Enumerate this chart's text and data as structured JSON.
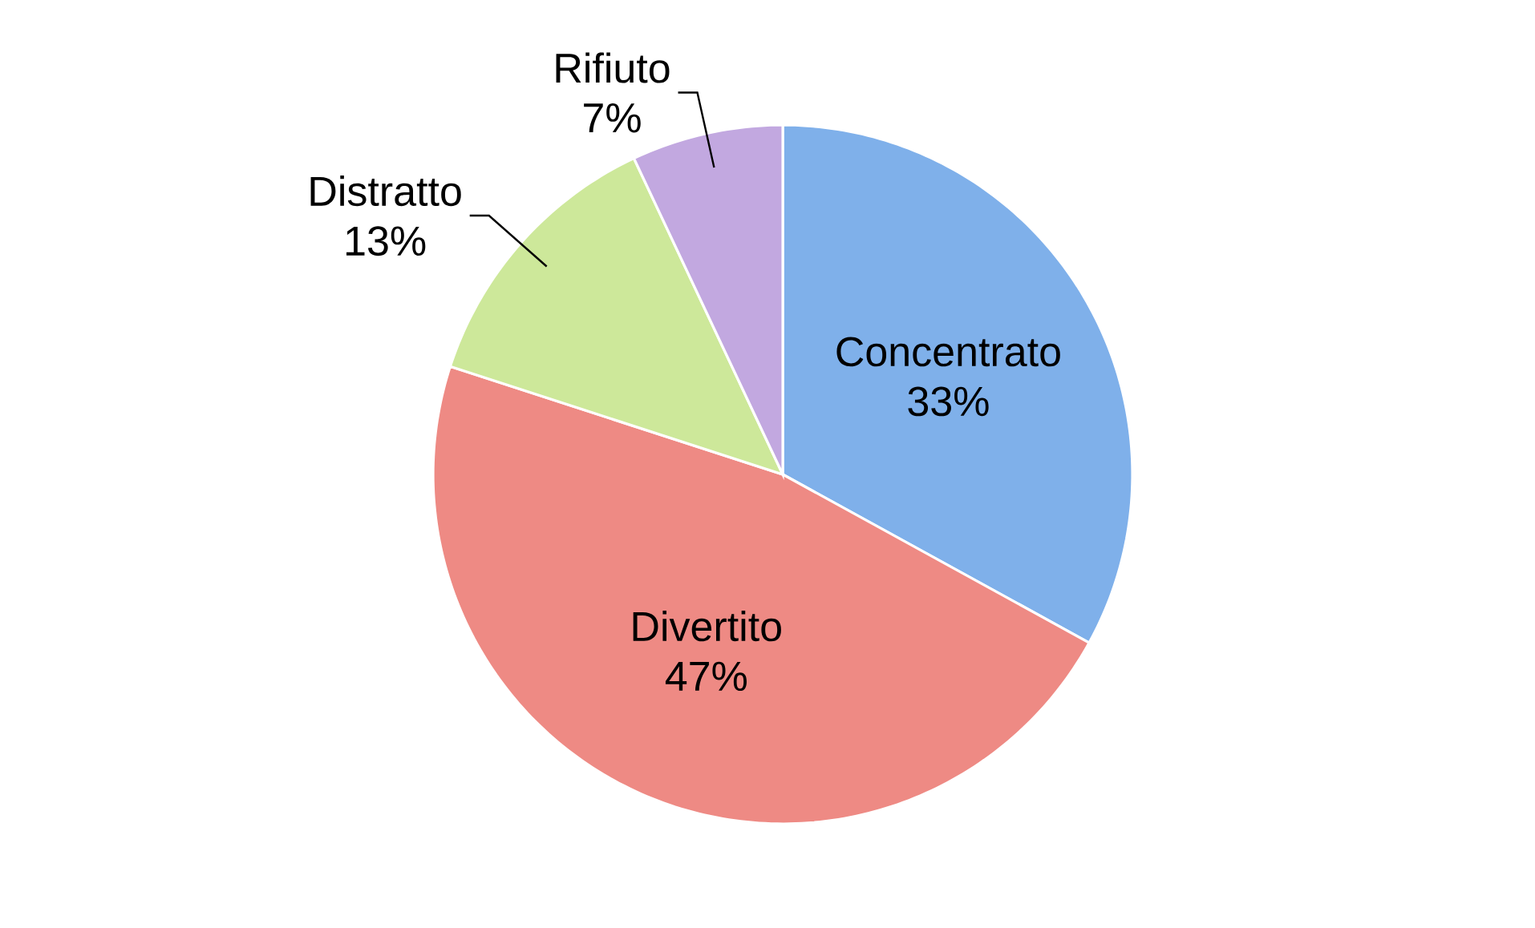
{
  "chart_data": {
    "type": "pie",
    "categories": [
      "Concentrato",
      "Divertito",
      "Distratto",
      "Rifiuto"
    ],
    "values": [
      33,
      47,
      13,
      7
    ],
    "value_labels": [
      "33%",
      "47%",
      "13%",
      "7%"
    ],
    "colors": [
      "#7fb0ea",
      "#ee8a84",
      "#cde89a",
      "#c2a8e0"
    ]
  }
}
